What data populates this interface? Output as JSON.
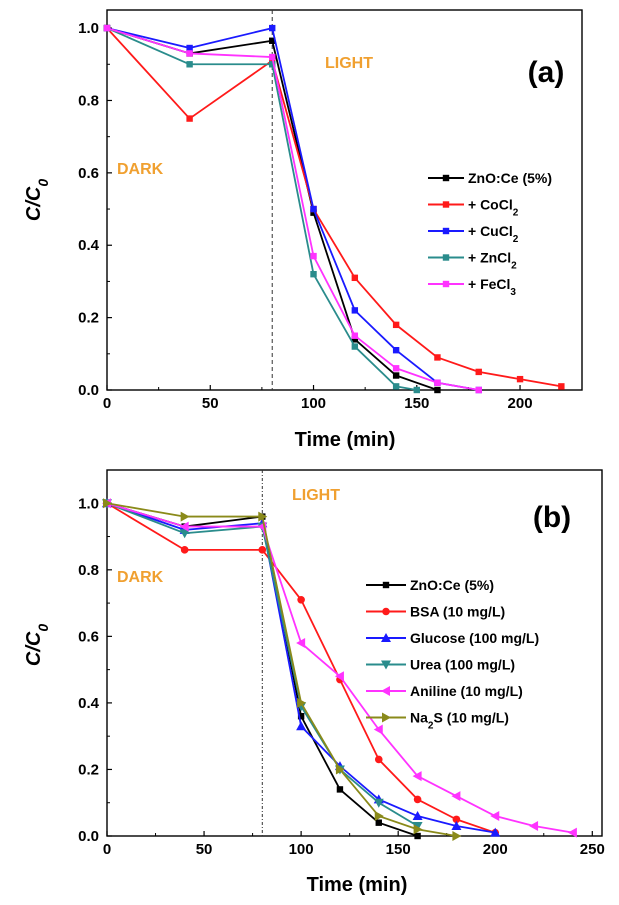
{
  "chart_data": [
    {
      "type": "line",
      "panel_label": "(a)",
      "ylabel": "C/C",
      "ylabel_sub": "0",
      "xlabel": "Time (min)",
      "xlim": [
        0,
        230
      ],
      "ylim": [
        0,
        1.05
      ],
      "xticks": [
        "0",
        "50",
        "100",
        "150",
        "200"
      ],
      "yticks": [
        "0.0",
        "0.2",
        "0.4",
        "0.6",
        "0.8",
        "1.0"
      ],
      "annotations": {
        "dark": "DARK",
        "light": "LIGHT"
      },
      "light_on_x": 80,
      "legend_position": "right-middle",
      "series": [
        {
          "name": "ZnO:Ce (5%)",
          "sub": "",
          "color": "#000000",
          "marker": "square",
          "x": [
            0,
            40,
            80,
            100,
            120,
            140,
            160
          ],
          "y": [
            1.0,
            0.93,
            0.965,
            0.49,
            0.14,
            0.04,
            0.0
          ]
        },
        {
          "name": "+ CoCl",
          "sub": "2",
          "color": "#ff1a1a",
          "marker": "square",
          "x": [
            0,
            40,
            80,
            100,
            120,
            140,
            160,
            180,
            200,
            220
          ],
          "y": [
            1.0,
            0.75,
            0.91,
            0.5,
            0.31,
            0.18,
            0.09,
            0.05,
            0.03,
            0.01
          ]
        },
        {
          "name": "+ CuCl",
          "sub": "2",
          "color": "#1a1aff",
          "marker": "square",
          "x": [
            0,
            40,
            80,
            100,
            120,
            140,
            160,
            180
          ],
          "y": [
            1.0,
            0.945,
            1.0,
            0.5,
            0.22,
            0.11,
            0.02,
            0.0
          ]
        },
        {
          "name": "+ ZnCl",
          "sub": "2",
          "color": "#2a8c8c",
          "marker": "square",
          "x": [
            0,
            40,
            80,
            100,
            120,
            140,
            150
          ],
          "y": [
            1.0,
            0.9,
            0.9,
            0.32,
            0.12,
            0.01,
            0.0
          ]
        },
        {
          "name": "+ FeCl",
          "sub": "3",
          "color": "#ff33ff",
          "marker": "square",
          "x": [
            0,
            40,
            80,
            100,
            120,
            140,
            160,
            180
          ],
          "y": [
            1.0,
            0.93,
            0.92,
            0.37,
            0.15,
            0.06,
            0.02,
            0.0
          ]
        }
      ]
    },
    {
      "type": "line",
      "panel_label": "(b)",
      "ylabel": "C/C",
      "ylabel_sub": "0",
      "xlabel": "Time (min)",
      "xlim": [
        0,
        255
      ],
      "ylim": [
        0,
        1.1
      ],
      "xticks": [
        "0",
        "50",
        "100",
        "150",
        "200",
        "250"
      ],
      "yticks": [
        "0.0",
        "0.2",
        "0.4",
        "0.6",
        "0.8",
        "1.0"
      ],
      "annotations": {
        "dark": "DARK",
        "light": "LIGHT"
      },
      "light_on_x": 80,
      "legend_position": "right-middle",
      "series": [
        {
          "name": "ZnO:Ce (5%)",
          "sub": "",
          "suffix": "",
          "color": "#000000",
          "marker": "square",
          "x": [
            0,
            40,
            80,
            100,
            120,
            140,
            160
          ],
          "y": [
            1.0,
            0.93,
            0.96,
            0.36,
            0.14,
            0.04,
            0.0
          ]
        },
        {
          "name": "BSA (10 mg/L)",
          "sub": "",
          "suffix": "",
          "color": "#ff1a1a",
          "marker": "circle",
          "x": [
            0,
            40,
            80,
            100,
            120,
            140,
            160,
            180,
            200
          ],
          "y": [
            1.0,
            0.86,
            0.86,
            0.71,
            0.47,
            0.23,
            0.11,
            0.05,
            0.01
          ]
        },
        {
          "name": "Glucose (100 mg/L)",
          "sub": "",
          "suffix": "",
          "color": "#1a1aff",
          "marker": "triangle-up",
          "x": [
            0,
            40,
            80,
            100,
            120,
            140,
            160,
            180,
            200
          ],
          "y": [
            1.0,
            0.92,
            0.94,
            0.33,
            0.21,
            0.11,
            0.06,
            0.03,
            0.01
          ]
        },
        {
          "name": "Urea (100 mg/L)",
          "sub": "",
          "suffix": "",
          "color": "#2a8c8c",
          "marker": "triangle-down",
          "x": [
            0,
            40,
            80,
            100,
            120,
            140,
            160
          ],
          "y": [
            1.0,
            0.91,
            0.93,
            0.39,
            0.2,
            0.1,
            0.03
          ]
        },
        {
          "name": "Aniline (10 mg/L)",
          "sub": "",
          "suffix": "",
          "color": "#ff33ff",
          "marker": "triangle-left",
          "x": [
            0,
            40,
            80,
            100,
            120,
            140,
            160,
            180,
            200,
            220,
            240
          ],
          "y": [
            1.0,
            0.93,
            0.93,
            0.58,
            0.48,
            0.32,
            0.18,
            0.12,
            0.06,
            0.03,
            0.01
          ]
        },
        {
          "name": "Na",
          "sub": "2",
          "suffix": "S (10 mg/L)",
          "color": "#8a8a1a",
          "marker": "triangle-right",
          "x": [
            0,
            40,
            80,
            100,
            120,
            140,
            160,
            180
          ],
          "y": [
            1.0,
            0.96,
            0.96,
            0.4,
            0.2,
            0.06,
            0.02,
            0.0
          ]
        }
      ]
    }
  ]
}
